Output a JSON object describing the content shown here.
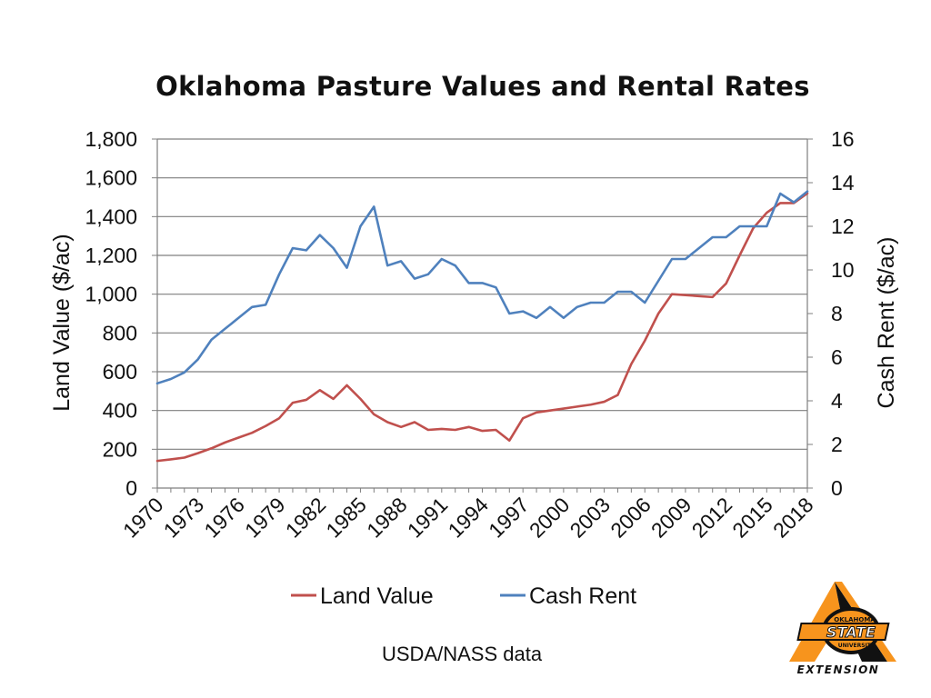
{
  "source_note": "USDA/NASS data",
  "logo": {
    "text_top": "OKLAHOMA",
    "text_main": "STATE",
    "text_sub": "UNIVERSITY",
    "text_bottom": "EXTENSION"
  },
  "colors": {
    "land_value": "#c0504d",
    "cash_rent": "#4f81bd",
    "gridline": "#7f7f7f",
    "logo_orange": "#f7941d",
    "logo_black": "#111111"
  },
  "chart_data": {
    "type": "line",
    "title": "Oklahoma Pasture Values and Rental Rates",
    "ylabel": "Land Value ($/ac)",
    "y2label": "Cash Rent ($/ac)",
    "ylim": [
      0,
      1800
    ],
    "y2lim": [
      0,
      16
    ],
    "yticks": [
      "0",
      "200",
      "400",
      "600",
      "800",
      "1,000",
      "1,200",
      "1,400",
      "1,600",
      "1,800"
    ],
    "y2ticks": [
      "0",
      "2",
      "4",
      "6",
      "8",
      "10",
      "12",
      "14",
      "16"
    ],
    "xlim": [
      1970,
      2018
    ],
    "xticks": [
      "1970",
      "1973",
      "1976",
      "1979",
      "1982",
      "1985",
      "1988",
      "1991",
      "1994",
      "1997",
      "2000",
      "2003",
      "2006",
      "2009",
      "2012",
      "2015",
      "2018"
    ],
    "grid": true,
    "legend_position": "bottom",
    "x": [
      1970,
      1971,
      1972,
      1973,
      1974,
      1975,
      1976,
      1977,
      1978,
      1979,
      1980,
      1981,
      1982,
      1983,
      1984,
      1985,
      1986,
      1987,
      1988,
      1989,
      1990,
      1991,
      1992,
      1993,
      1994,
      1995,
      1996,
      1997,
      1998,
      1999,
      2000,
      2001,
      2002,
      2003,
      2004,
      2005,
      2006,
      2007,
      2008,
      2009,
      2010,
      2011,
      2012,
      2013,
      2014,
      2015,
      2016,
      2017,
      2018
    ],
    "series": [
      {
        "name": "Land Value",
        "axis": "left",
        "values": [
          140,
          148,
          157,
          180,
          205,
          235,
          260,
          285,
          320,
          360,
          440,
          455,
          505,
          460,
          530,
          460,
          380,
          340,
          315,
          340,
          300,
          305,
          300,
          315,
          295,
          300,
          245,
          360,
          390,
          400,
          410,
          420,
          430,
          445,
          480,
          640,
          760,
          900,
          1000,
          995,
          990,
          985,
          1055,
          1200,
          1340,
          1420,
          1470,
          1470,
          1520
        ]
      },
      {
        "name": "Cash Rent",
        "axis": "right",
        "values": [
          4.8,
          5.0,
          5.3,
          5.9,
          6.8,
          7.3,
          7.8,
          8.3,
          8.4,
          9.8,
          11.0,
          10.9,
          11.6,
          11.0,
          10.1,
          12.0,
          12.9,
          10.2,
          10.4,
          9.6,
          9.8,
          10.5,
          10.2,
          9.4,
          9.4,
          9.2,
          8.0,
          8.1,
          7.8,
          8.3,
          7.8,
          8.3,
          8.5,
          8.5,
          9.0,
          9.0,
          8.5,
          9.5,
          10.5,
          10.5,
          11.0,
          11.5,
          11.5,
          12.0,
          12.0,
          12.0,
          13.5,
          13.1,
          13.6
        ]
      }
    ]
  }
}
